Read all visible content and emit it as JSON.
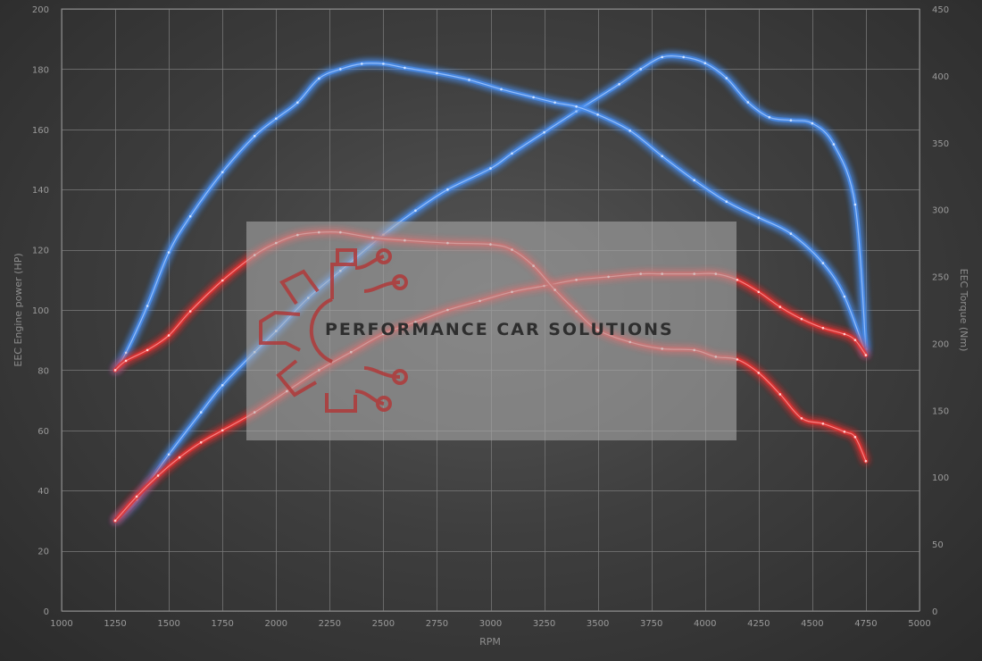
{
  "chart_data": {
    "type": "line",
    "xlabel": "RPM",
    "ylabel_left": "EEC Engine power (HP)",
    "ylabel_right": "EEC Torque (Nm)",
    "xlim": [
      1000,
      5000
    ],
    "xticks": [
      1000,
      1250,
      1500,
      1750,
      2000,
      2250,
      2500,
      2750,
      3000,
      3250,
      3500,
      3750,
      4000,
      4250,
      4500,
      4750,
      5000
    ],
    "ylim_left": [
      0,
      200
    ],
    "yticks_left": [
      0,
      20,
      40,
      60,
      80,
      100,
      120,
      140,
      160,
      180,
      200
    ],
    "ylim_right": [
      0,
      450
    ],
    "yticks_right": [
      0,
      50,
      100,
      150,
      200,
      250,
      300,
      350,
      400,
      450
    ],
    "grid": true,
    "series": [
      {
        "color": "#4a8ff0",
        "axis": "left",
        "x": [
          1250,
          1350,
          1500,
          1650,
          1750,
          1900,
          2000,
          2150,
          2300,
          2500,
          2650,
          2800,
          3000,
          3100,
          3250,
          3400,
          3600,
          3700,
          3800,
          3900,
          4000,
          4100,
          4200,
          4300,
          4400,
          4500,
          4600,
          4700,
          4750
        ],
        "y": [
          30,
          37,
          52,
          66,
          75,
          86,
          93,
          104,
          113,
          125,
          133,
          140,
          147,
          152,
          159,
          166,
          175,
          180,
          184,
          184,
          182,
          177,
          169,
          164,
          163,
          162,
          155,
          135,
          87
        ]
      },
      {
        "color": "#4a8ff0",
        "axis": "right",
        "x": [
          1250,
          1300,
          1400,
          1500,
          1600,
          1750,
          1900,
          2000,
          2100,
          2200,
          2300,
          2400,
          2500,
          2600,
          2750,
          2900,
          3050,
          3200,
          3300,
          3400,
          3500,
          3650,
          3800,
          3950,
          4100,
          4250,
          4400,
          4550,
          4650,
          4750
        ],
        "y": [
          180,
          193,
          228,
          268,
          295,
          328,
          355,
          368,
          380,
          398,
          405,
          409,
          409,
          406,
          402,
          397,
          390,
          384,
          380,
          377,
          371,
          359,
          340,
          322,
          306,
          294,
          282,
          260,
          235,
          192
        ]
      },
      {
        "color": "#e03030",
        "axis": "left",
        "x": [
          1250,
          1350,
          1450,
          1550,
          1650,
          1750,
          1900,
          2050,
          2200,
          2350,
          2500,
          2650,
          2800,
          2950,
          3100,
          3250,
          3400,
          3550,
          3700,
          3800,
          3950,
          4050,
          4150,
          4250,
          4350,
          4450,
          4550,
          4650,
          4700,
          4750
        ],
        "y": [
          30,
          38,
          45,
          51,
          56,
          60,
          66,
          73,
          80,
          86,
          92,
          96,
          100,
          103,
          106,
          108,
          110,
          111,
          112,
          112,
          112,
          112,
          110,
          106,
          101,
          97,
          94,
          92,
          90,
          85
        ]
      },
      {
        "color": "#e03030",
        "axis": "right",
        "x": [
          1250,
          1300,
          1400,
          1500,
          1600,
          1750,
          1900,
          2000,
          2100,
          2200,
          2300,
          2450,
          2600,
          2800,
          3000,
          3100,
          3200,
          3300,
          3400,
          3500,
          3650,
          3800,
          3950,
          4050,
          4150,
          4250,
          4350,
          4450,
          4550,
          4650,
          4700,
          4750
        ],
        "y": [
          180,
          187,
          195,
          206,
          224,
          247,
          266,
          275,
          281,
          283,
          283,
          279,
          277,
          275,
          274,
          270,
          258,
          240,
          224,
          210,
          201,
          196,
          195,
          190,
          188,
          178,
          162,
          144,
          140,
          134,
          130,
          112
        ]
      }
    ]
  },
  "watermark": {
    "text": "PERFORMANCE CAR SOLUTIONS",
    "logo": "gear-circuit-logo",
    "logo_color": "#b03a3a"
  }
}
